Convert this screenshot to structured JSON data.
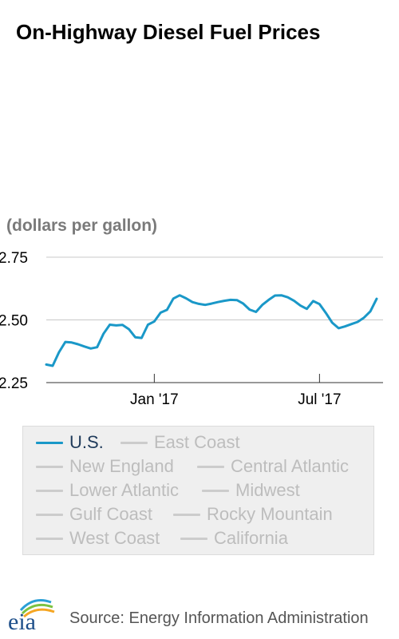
{
  "title": "On-Highway Diesel Fuel Prices",
  "chart_data": {
    "type": "line",
    "title": "On-Highway Diesel Fuel Prices",
    "ylabel": "(dollars per gallon)",
    "ylim": [
      2.25,
      2.75
    ],
    "yticks": [
      2.25,
      2.5,
      2.75
    ],
    "ytick_labels": [
      "2.25",
      "2.50",
      "2.75"
    ],
    "xlim": [
      "2016-09-05",
      "2017-09-11"
    ],
    "xticks": [
      "2017-01-02",
      "2017-07-03"
    ],
    "xtick_labels": [
      "Jan '17",
      "Jul '17"
    ],
    "grid": "horizontal",
    "legend_position": "bottom",
    "series": [
      {
        "name": "U.S.",
        "color": "#1a98c8",
        "points": [
          [
            "2016-09-05",
            2.322
          ],
          [
            "2016-09-12",
            2.317
          ],
          [
            "2016-09-19",
            2.371
          ],
          [
            "2016-09-26",
            2.412
          ],
          [
            "2016-10-03",
            2.41
          ],
          [
            "2016-10-10",
            2.403
          ],
          [
            "2016-10-17",
            2.394
          ],
          [
            "2016-10-24",
            2.386
          ],
          [
            "2016-10-31",
            2.391
          ],
          [
            "2016-11-07",
            2.445
          ],
          [
            "2016-11-14",
            2.481
          ],
          [
            "2016-11-21",
            2.478
          ],
          [
            "2016-11-28",
            2.48
          ],
          [
            "2016-12-05",
            2.463
          ],
          [
            "2016-12-12",
            2.431
          ],
          [
            "2016-12-19",
            2.428
          ],
          [
            "2016-12-26",
            2.481
          ],
          [
            "2017-01-02",
            2.494
          ],
          [
            "2017-01-09",
            2.529
          ],
          [
            "2017-01-16",
            2.54
          ],
          [
            "2017-01-23",
            2.585
          ],
          [
            "2017-01-30",
            2.598
          ],
          [
            "2017-02-06",
            2.586
          ],
          [
            "2017-02-13",
            2.571
          ],
          [
            "2017-02-20",
            2.564
          ],
          [
            "2017-02-27",
            2.56
          ],
          [
            "2017-03-06",
            2.565
          ],
          [
            "2017-03-13",
            2.571
          ],
          [
            "2017-03-20",
            2.576
          ],
          [
            "2017-03-27",
            2.58
          ],
          [
            "2017-04-03",
            2.579
          ],
          [
            "2017-04-10",
            2.565
          ],
          [
            "2017-04-17",
            2.541
          ],
          [
            "2017-04-24",
            2.532
          ],
          [
            "2017-05-01",
            2.56
          ],
          [
            "2017-05-08",
            2.58
          ],
          [
            "2017-05-15",
            2.597
          ],
          [
            "2017-05-22",
            2.598
          ],
          [
            "2017-05-29",
            2.59
          ],
          [
            "2017-06-05",
            2.576
          ],
          [
            "2017-06-12",
            2.557
          ],
          [
            "2017-06-19",
            2.544
          ],
          [
            "2017-06-26",
            2.575
          ],
          [
            "2017-07-03",
            2.563
          ],
          [
            "2017-07-10",
            2.528
          ],
          [
            "2017-07-17",
            2.489
          ],
          [
            "2017-07-24",
            2.467
          ],
          [
            "2017-07-31",
            2.474
          ],
          [
            "2017-08-07",
            2.483
          ],
          [
            "2017-08-14",
            2.492
          ],
          [
            "2017-08-21",
            2.509
          ],
          [
            "2017-08-28",
            2.534
          ],
          [
            "2017-09-04",
            2.584
          ]
        ]
      },
      {
        "name": "East Coast",
        "color": "#cccccc",
        "points": []
      },
      {
        "name": "New England",
        "color": "#cccccc",
        "points": []
      },
      {
        "name": "Central Atlantic",
        "color": "#cccccc",
        "points": []
      },
      {
        "name": "Lower Atlantic",
        "color": "#cccccc",
        "points": []
      },
      {
        "name": "Midwest",
        "color": "#cccccc",
        "points": []
      },
      {
        "name": "Gulf Coast",
        "color": "#cccccc",
        "points": []
      },
      {
        "name": "Rocky Mountain",
        "color": "#cccccc",
        "points": []
      },
      {
        "name": "West Coast",
        "color": "#cccccc",
        "points": []
      },
      {
        "name": "California",
        "color": "#cccccc",
        "points": []
      }
    ]
  },
  "legend": {
    "rows": [
      [
        {
          "label": "U.S.",
          "active": true
        },
        {
          "label": "East Coast",
          "active": false
        }
      ],
      [
        {
          "label": "New England",
          "active": false
        },
        {
          "label": "Central Atlantic",
          "active": false
        }
      ],
      [
        {
          "label": "Lower Atlantic",
          "active": false
        },
        {
          "label": "Midwest",
          "active": false
        }
      ],
      [
        {
          "label": "Gulf Coast",
          "active": false
        },
        {
          "label": "Rocky Mountain",
          "active": false
        }
      ],
      [
        {
          "label": "West Coast",
          "active": false
        },
        {
          "label": "California",
          "active": false
        }
      ]
    ]
  },
  "colors": {
    "active_series": "#1a98c8",
    "inactive_series": "#cccccc",
    "active_text": "#1f3a5a",
    "inactive_text": "#bdbdbd",
    "grid": "#c8c8c8",
    "axis": "#333333"
  },
  "footer": {
    "logo_text": "eia",
    "source": "Source: Energy Information Administration"
  }
}
